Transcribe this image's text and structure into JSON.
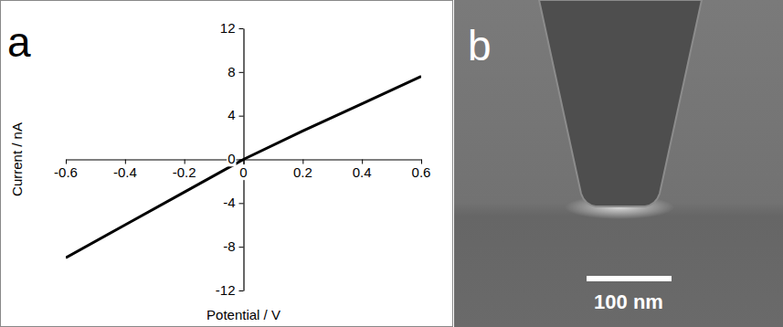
{
  "chart_data": {
    "type": "line",
    "panel_label": "a",
    "x": [
      -0.6,
      -0.4,
      -0.2,
      0,
      0.2,
      0.4,
      0.6
    ],
    "values": [
      -9.0,
      -6.0,
      -3.0,
      0,
      2.6,
      5.1,
      7.6
    ],
    "color": "#000000",
    "line_style": "solid",
    "x_label": "Potential / V",
    "y_label": "Current / nA",
    "xlim": [
      -0.6,
      0.6
    ],
    "xticks": [
      -0.6,
      -0.4,
      -0.2,
      0,
      0.2,
      0.4,
      0.6
    ],
    "ylim": [
      -12,
      12
    ],
    "yticks": [
      -12,
      -8,
      -4,
      0,
      4,
      8,
      12
    ],
    "grid": false
  },
  "image_panel": {
    "panel_label": "b",
    "scale_bar_label": "100 nm"
  }
}
